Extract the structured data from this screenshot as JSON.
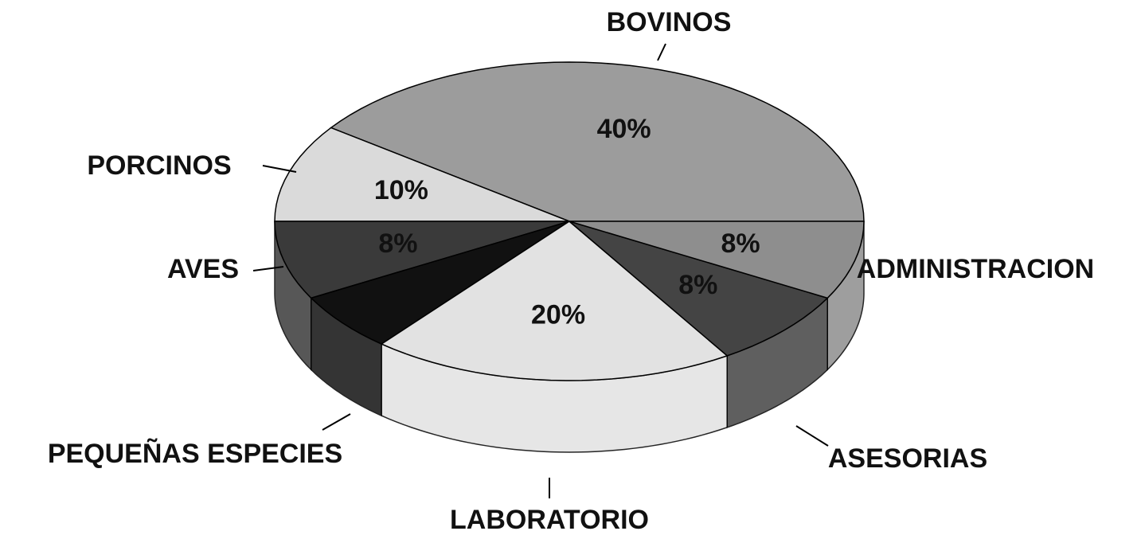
{
  "chart_data": {
    "type": "pie3d",
    "categories": [
      "BOVINOS",
      "PORCINOS",
      "AVES",
      "PEQUEÑAS ESPECIES",
      "LABORATORIO",
      "ASESORIAS",
      "ADMINISTRACION"
    ],
    "values": [
      40,
      10,
      8,
      6,
      20,
      8,
      8
    ],
    "value_labels": [
      "40%",
      "10%",
      "8%",
      null,
      "20%",
      "8%",
      "8%"
    ],
    "colors": [
      "#9c9c9c",
      "#dadada",
      "#3a3a3a",
      "#111111",
      "#e2e2e2",
      "#444444",
      "#8e8e8e"
    ]
  }
}
